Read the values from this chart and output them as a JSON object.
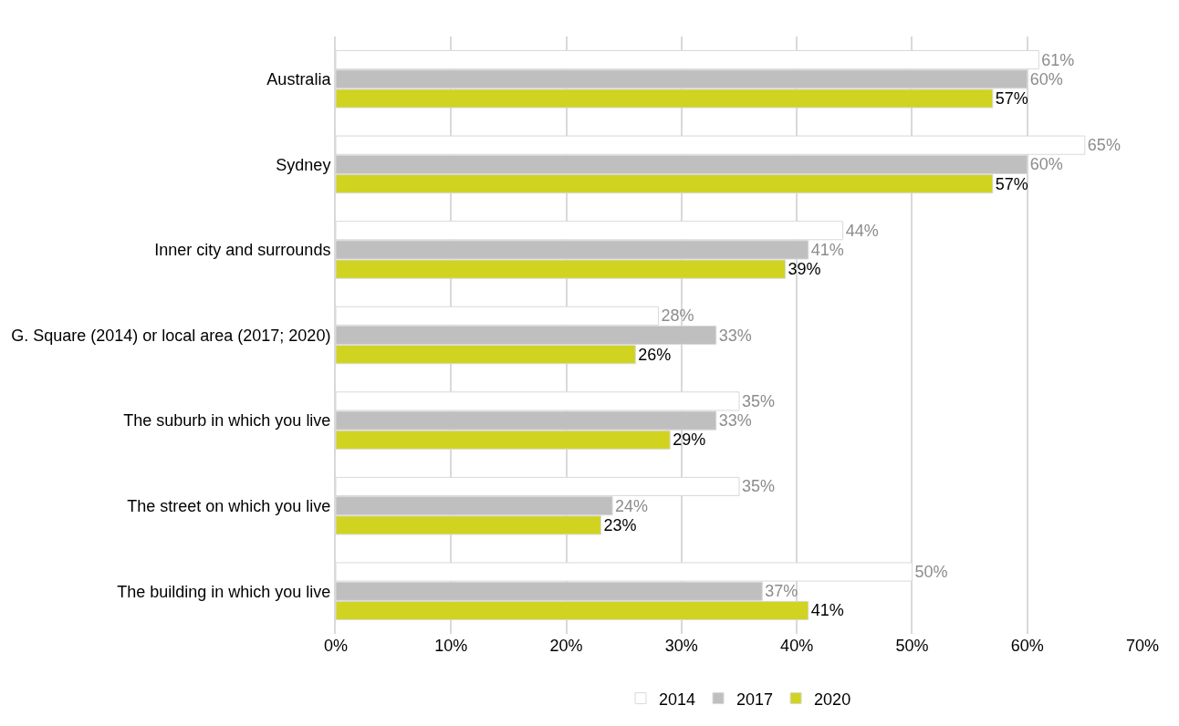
{
  "chart_data": {
    "type": "bar",
    "orientation": "horizontal",
    "categories": [
      "Australia",
      "Sydney",
      "Inner city and surrounds",
      "G. Square (2014) or local area (2017; 2020)",
      "The suburb in which you live",
      "The street on which you live",
      "The building in which you live"
    ],
    "series": [
      {
        "name": "2014",
        "color": "#ffffff",
        "values": [
          61,
          65,
          44,
          28,
          35,
          35,
          50
        ],
        "value_labels": [
          "61%",
          "65%",
          "44%",
          "28%",
          "35%",
          "35%",
          "50%"
        ]
      },
      {
        "name": "2017",
        "color": "#bfbfbf",
        "values": [
          60,
          60,
          41,
          33,
          33,
          24,
          37
        ],
        "value_labels": [
          "60%",
          "60%",
          "41%",
          "33%",
          "33%",
          "24%",
          "37%"
        ]
      },
      {
        "name": "2020",
        "color": "#d0d320",
        "values": [
          57,
          57,
          39,
          26,
          29,
          23,
          41
        ],
        "value_labels": [
          "57%",
          "57%",
          "39%",
          "26%",
          "29%",
          "23%",
          "41%"
        ]
      }
    ],
    "xlim": [
      0,
      70
    ],
    "xticks": [
      {
        "value": 0,
        "label": "0%"
      },
      {
        "value": 10,
        "label": "10%"
      },
      {
        "value": 20,
        "label": "20%"
      },
      {
        "value": 30,
        "label": "30%"
      },
      {
        "value": 40,
        "label": "40%"
      },
      {
        "value": 50,
        "label": "50%"
      },
      {
        "value": 60,
        "label": "60%"
      },
      {
        "value": 70,
        "label": "70%"
      }
    ],
    "grid": "x",
    "legend": "bottom"
  }
}
